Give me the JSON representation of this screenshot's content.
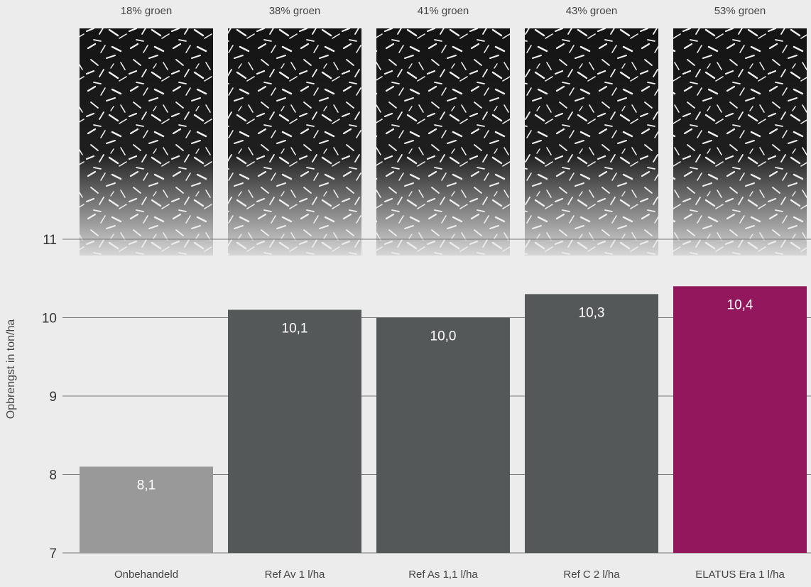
{
  "chart_data": {
    "type": "bar",
    "categories": [
      "Onbehandeld",
      "Ref Av 1 l/ha",
      "Ref As 1,1 l/ha",
      "Ref C 2 l/ha",
      "ELATUS Era 1 l/ha"
    ],
    "values": [
      8.1,
      10.1,
      10.0,
      10.3,
      10.4
    ],
    "value_labels": [
      "8,1",
      "10,1",
      "10,0",
      "10,3",
      "10,4"
    ],
    "green_labels": [
      "18% groen",
      "38% groen",
      "41% groen",
      "43% groen",
      "53% groen"
    ],
    "green_percent": [
      18,
      38,
      41,
      43,
      53
    ],
    "ylabel": "Opbrengst in ton/ha",
    "ylim": [
      7,
      11
    ],
    "yticks": [
      7,
      8,
      9,
      10,
      11
    ],
    "grid": true,
    "colors": [
      "#999999",
      "#545858",
      "#545858",
      "#545858",
      "#92175c"
    ]
  }
}
